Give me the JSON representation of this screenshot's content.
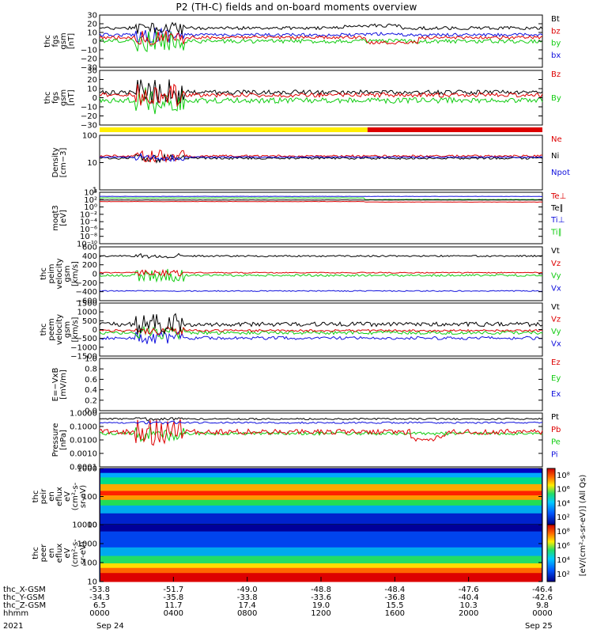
{
  "title": "P2 (TH-C) fields and on-board moments overview",
  "colors": {
    "black": "#000000",
    "red": "#dd0000",
    "green": "#11cc11",
    "blue": "#1010dd",
    "yellow": "#ffee00"
  },
  "chart_data": {
    "type": "line",
    "panels": [
      {
        "id": "fgs-gsm",
        "ylabel": [
          "thc",
          "fgs",
          "gsm",
          "[nT]"
        ],
        "yticks": [
          "30",
          "20",
          "10",
          "0",
          "−10",
          "−20",
          "−30"
        ],
        "legend": [
          {
            "name": "Bt",
            "color": "black"
          },
          {
            "name": "bz",
            "color": "red"
          },
          {
            "name": "by",
            "color": "green"
          },
          {
            "name": "bx",
            "color": "blue"
          }
        ]
      },
      {
        "id": "fgs-gse",
        "ylabel": [
          "thc",
          "fgs",
          "gsm",
          "[nT]"
        ],
        "yticks": [
          "30",
          "20",
          "10",
          "0",
          "−10",
          "−20",
          "−30"
        ],
        "legend": [
          {
            "name": "Bz",
            "color": "red"
          },
          {
            "name": "By",
            "color": "green"
          }
        ]
      },
      {
        "id": "density",
        "ylabel": [
          "Density",
          "[cm−3]"
        ],
        "yticks": [
          "100",
          "10",
          "1"
        ],
        "legend": [
          {
            "name": "Ne",
            "color": "red"
          },
          {
            "name": "Ni",
            "color": "black"
          },
          {
            "name": "Npot",
            "color": "blue"
          }
        ]
      },
      {
        "id": "temperature",
        "ylabel": [
          "moqt3",
          "[eV]"
        ],
        "yticks": [
          "10⁴",
          "10²",
          "10⁰",
          "10⁻²",
          "10⁻⁴",
          "10⁻⁶",
          "10⁻⁸",
          "10⁻¹⁰"
        ],
        "legend": [
          {
            "name": "Te⊥",
            "color": "red"
          },
          {
            "name": "Te∥",
            "color": "black"
          },
          {
            "name": "Ti⊥",
            "color": "blue"
          },
          {
            "name": "Ti∥",
            "color": "green"
          }
        ]
      },
      {
        "id": "peim-velocity",
        "ylabel": [
          "thc",
          "peim",
          "velocity",
          "gsm",
          "[km/s]"
        ],
        "yticks": [
          "600",
          "400",
          "200",
          "0",
          "−200",
          "−400",
          "−600"
        ],
        "legend": [
          {
            "name": "Vt",
            "color": "black"
          },
          {
            "name": "Vz",
            "color": "red"
          },
          {
            "name": "Vy",
            "color": "green"
          },
          {
            "name": "Vx",
            "color": "blue"
          }
        ]
      },
      {
        "id": "peem-velocity",
        "ylabel": [
          "thc",
          "peem",
          "velocity",
          "gsm",
          "[km/s]"
        ],
        "yticks": [
          "1500",
          "1000",
          "500",
          "0",
          "−500",
          "−1000",
          "−1500"
        ],
        "legend": [
          {
            "name": "Vt",
            "color": "black"
          },
          {
            "name": "Vz",
            "color": "red"
          },
          {
            "name": "Vy",
            "color": "green"
          },
          {
            "name": "Vx",
            "color": "blue"
          }
        ]
      },
      {
        "id": "efield",
        "ylabel": [
          "E=−VxB",
          "[mV/m]"
        ],
        "yticks": [
          "1.0",
          "0.8",
          "0.6",
          "0.4",
          "0.2",
          "0.0"
        ],
        "legend": [
          {
            "name": "Ez",
            "color": "red"
          },
          {
            "name": "Ey",
            "color": "green"
          },
          {
            "name": "Ex",
            "color": "blue"
          }
        ]
      },
      {
        "id": "pressure",
        "ylabel": [
          "Pressure",
          "[nPa]"
        ],
        "yticks": [
          "1.0000",
          "0.1000",
          "0.0100",
          "0.0010",
          "0.0001"
        ],
        "legend": [
          {
            "name": "Pt",
            "color": "black"
          },
          {
            "name": "Pb",
            "color": "red"
          },
          {
            "name": "Pe",
            "color": "green"
          },
          {
            "name": "Pi",
            "color": "blue"
          }
        ]
      },
      {
        "id": "peir-spec",
        "ylabel": [
          "thc",
          "peir",
          "en",
          "eflux",
          "eV",
          "(cm²-s-",
          "sr-eV)"
        ],
        "yticks": [
          "1000",
          "100",
          "10"
        ]
      },
      {
        "id": "peer-spec",
        "ylabel": [
          "thc",
          "peer",
          "en",
          "eflux",
          "eV",
          "(cm²-s-",
          "sr-eV)"
        ],
        "yticks": [
          "10000",
          "1000",
          "100",
          "10"
        ]
      }
    ],
    "colorbar": {
      "label": "[eV/(cm²-s-sr-eV)] (All Qs)",
      "ticks_upper": [
        "10⁸",
        "10⁶",
        "10⁴",
        "10²"
      ],
      "ticks_lower": [
        "10⁸",
        "10⁶",
        "10⁴",
        "10²"
      ]
    },
    "x_axis": {
      "rows": [
        {
          "label": "thc_X-GSM",
          "values": [
            "-53.8",
            "-51.7",
            "-49.0",
            "-48.8",
            "-48.4",
            "-47.6",
            "-46.4"
          ]
        },
        {
          "label": "thc_Y-GSM",
          "values": [
            "-34.3",
            "-35.8",
            "-33.8",
            "-33.6",
            "-36.8",
            "-40.4",
            "-42.6"
          ]
        },
        {
          "label": "thc_Z-GSM",
          "values": [
            "6.5",
            "11.7",
            "17.4",
            "19.0",
            "15.5",
            "10.3",
            "9.8"
          ]
        },
        {
          "label": "hhmm",
          "values": [
            "0000",
            "0400",
            "0800",
            "1200",
            "1600",
            "2000",
            "0000"
          ]
        }
      ],
      "year": "2021",
      "dates": [
        "Sep 24",
        "Sep 25"
      ]
    }
  }
}
